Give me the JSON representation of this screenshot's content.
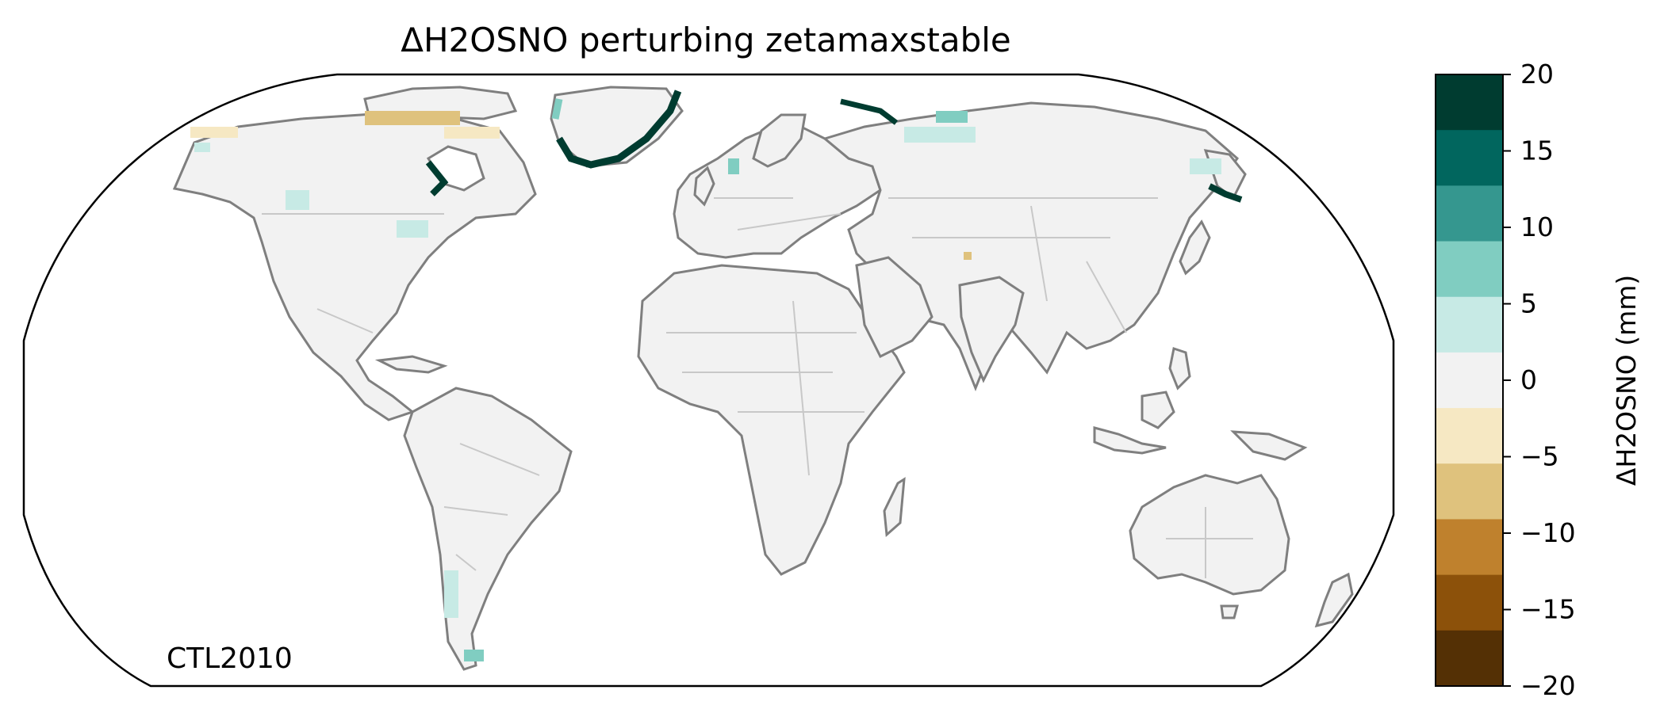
{
  "map": {
    "title": "ΔH2OSNO perturbing zetamaxstable",
    "projection": "Robinson",
    "panel_label": "CTL2010",
    "land_color": "#f2f2f2",
    "coastline_color": "#7f7f7f",
    "border_color": "#c8c8c8"
  },
  "colorbar": {
    "label": "ΔH2OSNO (mm)",
    "ticks": [
      "20",
      "15",
      "10",
      "5",
      "0",
      "−5",
      "−10",
      "−15",
      "−20"
    ],
    "levels_top_to_bottom": [
      {
        "range": "15 to 20",
        "color": "#003c30"
      },
      {
        "range": "10 to 15",
        "color": "#01665e"
      },
      {
        "range": "5 to 10",
        "color": "#35978f"
      },
      {
        "range": "2 to 5",
        "color": "#80cdc1"
      },
      {
        "range": "0 to 2",
        "color": "#c7eae5"
      },
      {
        "range": "-2 to 0",
        "color": "#f2f2f2"
      },
      {
        "range": "-5 to -2",
        "color": "#f6e8c3"
      },
      {
        "range": "-10 to -5",
        "color": "#dfc27d"
      },
      {
        "range": "-15 to -10",
        "color": "#bf812d"
      },
      {
        "range": "-20 to -15",
        "color": "#8c510a"
      },
      {
        "range": "< -20",
        "color": "#543005"
      }
    ]
  }
}
